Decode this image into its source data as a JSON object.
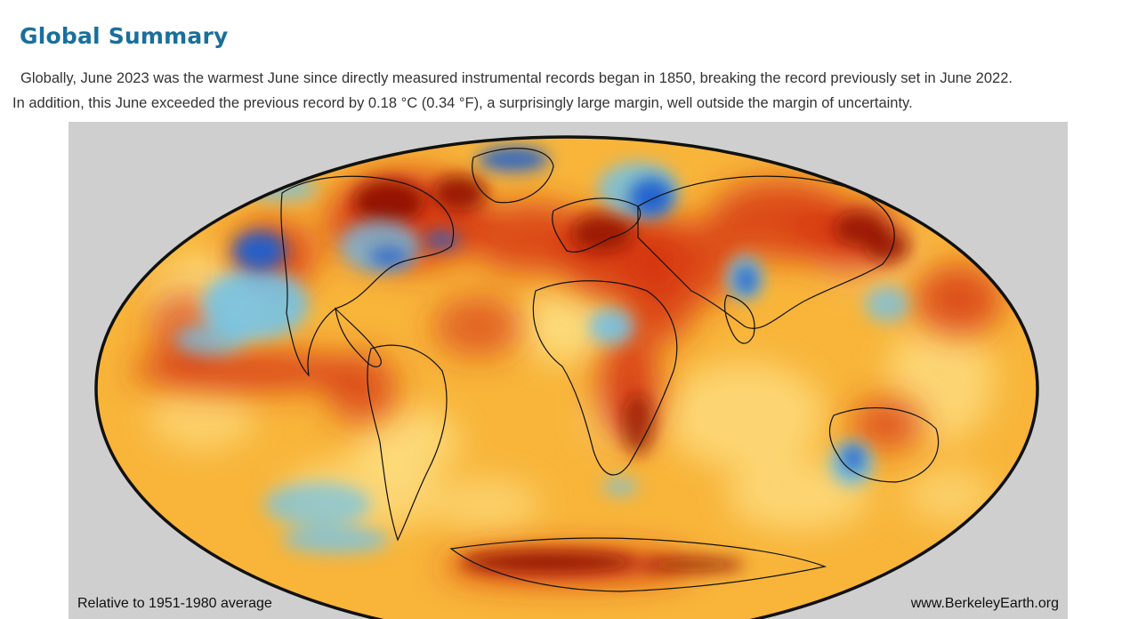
{
  "heading": {
    "title": "Global Summary"
  },
  "summary": {
    "line1": "Globally, June 2023 was the warmest June since directly measured instrumental records began in 1850, breaking the record previously set in June 2022.",
    "line2": "In addition, this June exceeded the previous record by 0.18 °C (0.34 °F), a surprisingly large margin, well outside the margin of uncertainty."
  },
  "map": {
    "projection": "Mollweide",
    "caption_left": "Relative to 1951-1980 average",
    "caption_right": "www.BerkeleyEarth.org",
    "colors": {
      "background": "#cfcfcf",
      "base_warm": "#f8b53a",
      "hot": "#d42f12",
      "very_hot": "#8e0c06",
      "mild": "#fde38a",
      "cool": "#6cc3f0",
      "cold": "#1f5fcf",
      "coastline": "#111111"
    }
  }
}
